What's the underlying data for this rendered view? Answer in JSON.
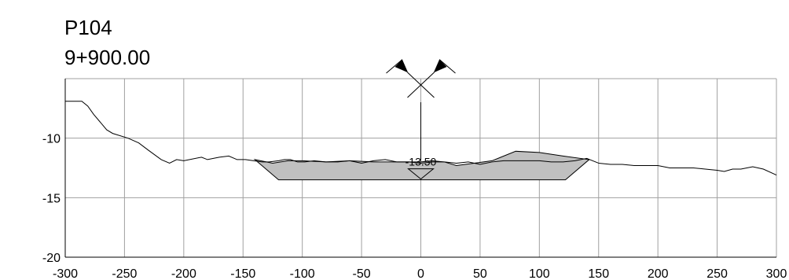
{
  "header": {
    "profile_id": "P104",
    "station": "9+900.00"
  },
  "chart_data": {
    "type": "line",
    "title": "P104",
    "subtitle": "9+900.00",
    "xlim": [
      -300,
      300
    ],
    "ylim": [
      -20,
      -5
    ],
    "x_ticks": [
      -300,
      -250,
      -200,
      -150,
      -100,
      -50,
      0,
      50,
      100,
      150,
      200,
      250,
      300
    ],
    "x_tick_labels": [
      "-300",
      "-250",
      "-200",
      "-150",
      "-100",
      "-50",
      "0",
      "50",
      "100",
      "150",
      "200",
      "250",
      "300"
    ],
    "y_ticks": [
      -20,
      -15,
      -10
    ],
    "y_tick_labels": [
      "-20",
      "-15",
      "-10"
    ],
    "grid": true,
    "series": [
      {
        "role": "ground",
        "color": "#000000",
        "x": [
          -300,
          -286,
          -281,
          -276,
          -265,
          -260,
          -247,
          -238,
          -230,
          -219,
          -212,
          -206,
          -200,
          -185,
          -180,
          -170,
          -162,
          -155,
          -148,
          -141,
          -134,
          -128,
          -120,
          -115,
          -110,
          -104,
          -98,
          -90,
          -80,
          -70,
          -60,
          -50,
          -40,
          -30,
          -20,
          -10,
          0,
          10,
          20,
          30,
          40,
          50,
          60,
          70,
          80,
          90,
          100,
          110,
          120,
          130,
          140,
          150,
          160,
          170,
          180,
          190,
          200,
          210,
          220,
          230,
          240,
          250,
          256,
          263,
          270,
          280,
          289,
          300
        ],
        "y": [
          -6.9,
          -6.9,
          -7.3,
          -8.0,
          -9.3,
          -9.6,
          -10.0,
          -10.4,
          -11.0,
          -11.8,
          -12.1,
          -11.8,
          -11.9,
          -11.6,
          -11.8,
          -11.6,
          -11.5,
          -11.8,
          -11.8,
          -11.9,
          -12.0,
          -12.0,
          -11.9,
          -11.8,
          -11.8,
          -12.0,
          -12.0,
          -11.9,
          -12.0,
          -12.0,
          -11.9,
          -12.1,
          -11.9,
          -11.8,
          -12.0,
          -12.0,
          -12.1,
          -12.0,
          -12.0,
          -12.1,
          -12.0,
          -12.2,
          -12.0,
          -11.9,
          -11.9,
          -11.9,
          -11.9,
          -12.0,
          -12.0,
          -11.9,
          -11.7,
          -12.1,
          -12.2,
          -12.2,
          -12.3,
          -12.3,
          -12.3,
          -12.5,
          -12.5,
          -12.5,
          -12.6,
          -12.7,
          -12.8,
          -12.6,
          -12.6,
          -12.4,
          -12.6,
          -13.1
        ]
      },
      {
        "role": "design-section",
        "color": "#000000",
        "fill": "#c0c0c0",
        "x": [
          -140,
          -120,
          122,
          142
        ],
        "y": [
          -11.8,
          -13.5,
          -13.5,
          -11.8
        ]
      },
      {
        "role": "design-top",
        "color": "#000000",
        "x": [
          -140,
          -125,
          -112,
          -100,
          -80,
          -60,
          -40,
          -20,
          0,
          10,
          20,
          30,
          45,
          60,
          80,
          100,
          120,
          142
        ],
        "y": [
          -11.8,
          -12.1,
          -11.9,
          -11.9,
          -12.0,
          -11.9,
          -12.0,
          -12.0,
          -12.0,
          -11.9,
          -12.0,
          -12.3,
          -12.1,
          -11.9,
          -11.1,
          -11.2,
          -11.5,
          -11.8
        ]
      }
    ],
    "annotations": [
      {
        "text": "-13.50",
        "x": 0,
        "y": -13.5,
        "kind": "elevation-label"
      }
    ],
    "markers": [
      {
        "kind": "centerline-flags",
        "x": 0
      },
      {
        "kind": "level-triangle",
        "x": 0,
        "y": -13.5
      }
    ]
  }
}
